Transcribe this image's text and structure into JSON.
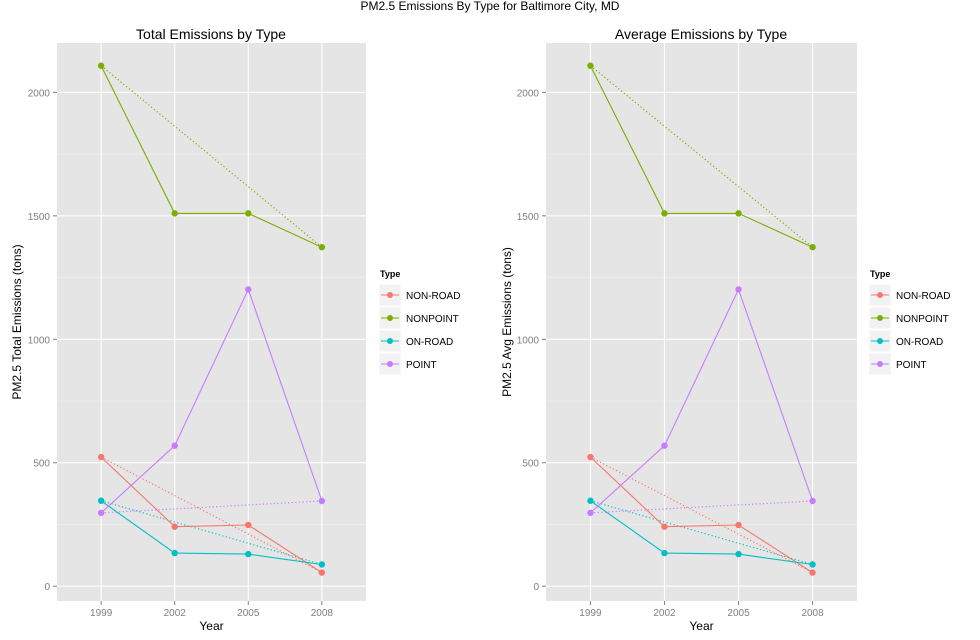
{
  "suptitle": "PM2.5 Emissions By Type for Baltimore City, MD",
  "colors": {
    "panel_bg": "#e5e5e5",
    "grid_major": "#ffffff",
    "grid_minor": "#f2f2f2",
    "tick_text": "#7f7f7f"
  },
  "chart_data": [
    {
      "type": "line",
      "title": "Total Emissions by Type",
      "xlabel": "Year",
      "ylabel": "PM2.5 Total Emissions (tons)",
      "categories": [
        "1999",
        "2002",
        "2005",
        "2008"
      ],
      "y_ticks": [
        0,
        500,
        1000,
        1500,
        2000
      ],
      "ylim": [
        -60,
        2200
      ],
      "grid": true,
      "legend": {
        "title": "Type",
        "position": "right"
      },
      "trend_lines": "dotted lines connecting the 1999 and 2008 values of each series",
      "series": [
        {
          "name": "NON-ROAD",
          "color": "#F8766D",
          "values": [
            523,
            241,
            248,
            55
          ]
        },
        {
          "name": "NONPOINT",
          "color": "#7CAE00",
          "values": [
            2108,
            1510,
            1510,
            1373
          ]
        },
        {
          "name": "ON-ROAD",
          "color": "#00BFC4",
          "values": [
            346,
            134,
            130,
            88
          ]
        },
        {
          "name": "POINT",
          "color": "#C77CFF",
          "values": [
            297,
            569,
            1202,
            345
          ]
        }
      ]
    },
    {
      "type": "line",
      "title": "Average Emissions by Type",
      "xlabel": "Year",
      "ylabel": "PM2.5 Avg Emissions (tons)",
      "categories": [
        "1999",
        "2002",
        "2005",
        "2008"
      ],
      "y_ticks": [
        0,
        500,
        1000,
        1500,
        2000
      ],
      "ylim": [
        -60,
        2200
      ],
      "grid": true,
      "legend": {
        "title": "Type",
        "position": "right"
      },
      "trend_lines": "dotted lines connecting the 1999 and 2008 values of each series",
      "series": [
        {
          "name": "NON-ROAD",
          "color": "#F8766D",
          "values": [
            523,
            241,
            248,
            55
          ]
        },
        {
          "name": "NONPOINT",
          "color": "#7CAE00",
          "values": [
            2108,
            1510,
            1510,
            1373
          ]
        },
        {
          "name": "ON-ROAD",
          "color": "#00BFC4",
          "values": [
            346,
            134,
            130,
            88
          ]
        },
        {
          "name": "POINT",
          "color": "#C77CFF",
          "values": [
            297,
            569,
            1202,
            345
          ]
        }
      ]
    }
  ]
}
